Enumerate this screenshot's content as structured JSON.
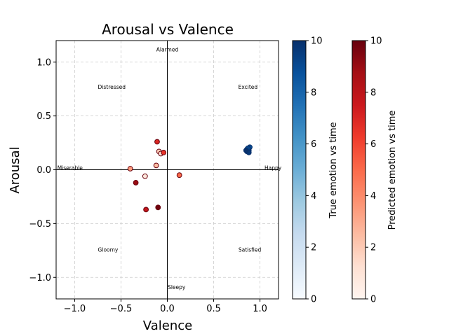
{
  "chart_data": {
    "type": "scatter",
    "title": "Arousal vs Valence",
    "xlabel": "Valence",
    "ylabel": "Arousal",
    "xlim": [
      -1.2,
      1.2
    ],
    "ylim": [
      -1.2,
      1.2
    ],
    "x_ticks": [
      -1.0,
      -0.5,
      0.0,
      0.5,
      1.0
    ],
    "x_tick_labels": [
      "−1.0",
      "−0.5",
      "0.0",
      "0.5",
      "1.0"
    ],
    "y_ticks": [
      -1.0,
      -0.5,
      0.0,
      0.5,
      1.0
    ],
    "y_tick_labels": [
      "−1.0",
      "−0.5",
      "0.0",
      "0.5",
      "1.0"
    ],
    "grid": true,
    "annotations": [
      {
        "text": "Alarmed",
        "x": 0.0,
        "y": 1.12
      },
      {
        "text": "Distressed",
        "x": -0.6,
        "y": 0.77
      },
      {
        "text": "Excited",
        "x": 0.87,
        "y": 0.77
      },
      {
        "text": "Miserable",
        "x": -1.05,
        "y": 0.02
      },
      {
        "text": "Happy",
        "x": 1.14,
        "y": 0.02
      },
      {
        "text": "Gloomy",
        "x": -0.64,
        "y": -0.74
      },
      {
        "text": "Satisfied",
        "x": 0.89,
        "y": -0.74
      },
      {
        "text": "Sleepy",
        "x": 0.1,
        "y": -1.09
      }
    ],
    "series": [
      {
        "name": "True emotion vs time",
        "colormap": "Blues",
        "points": [
          {
            "x": 0.86,
            "y": 0.19,
            "t": 9.0
          },
          {
            "x": 0.88,
            "y": 0.18,
            "t": 9.5
          },
          {
            "x": 0.86,
            "y": 0.17,
            "t": 9.8
          },
          {
            "x": 0.89,
            "y": 0.21,
            "t": 8.9
          },
          {
            "x": 0.87,
            "y": 0.2,
            "t": 9.2
          },
          {
            "x": 0.88,
            "y": 0.16,
            "t": 9.7
          },
          {
            "x": 0.85,
            "y": 0.18,
            "t": 10.0
          }
        ]
      },
      {
        "name": "Predicted emotion vs time",
        "colormap": "Reds",
        "points": [
          {
            "x": -0.4,
            "y": 0.01,
            "t": 3.5
          },
          {
            "x": -0.24,
            "y": -0.06,
            "t": 0.8
          },
          {
            "x": -0.34,
            "y": -0.12,
            "t": 9.0
          },
          {
            "x": -0.23,
            "y": -0.37,
            "t": 7.8
          },
          {
            "x": -0.1,
            "y": -0.35,
            "t": 9.8
          },
          {
            "x": -0.11,
            "y": 0.26,
            "t": 7.0
          },
          {
            "x": -0.12,
            "y": 0.04,
            "t": 2.5
          },
          {
            "x": -0.09,
            "y": 0.17,
            "t": 2.0
          },
          {
            "x": -0.07,
            "y": 0.15,
            "t": 1.0
          },
          {
            "x": -0.04,
            "y": 0.16,
            "t": 6.5
          },
          {
            "x": 0.13,
            "y": -0.05,
            "t": 5.0
          }
        ]
      }
    ],
    "colorbars": [
      {
        "label": "True emotion vs time",
        "colormap": "Blues",
        "range": [
          0,
          10
        ],
        "ticks": [
          0,
          2,
          4,
          6,
          8,
          10
        ]
      },
      {
        "label": "Predicted emotion vs time",
        "colormap": "Reds",
        "range": [
          0,
          10
        ],
        "ticks": [
          0,
          2,
          4,
          6,
          8,
          10
        ]
      }
    ],
    "colors": {
      "blues_low": "#f7fbff",
      "blues_mid": "#6baed6",
      "blues_high": "#08306b",
      "reds_low": "#fff5f0",
      "reds_mid": "#fb6a4a",
      "reds_high": "#67000d",
      "grid": "#cccccc",
      "axis": "#000000",
      "marker_edge_blue": "#08306b",
      "marker_edge_red": "#67000d"
    }
  }
}
